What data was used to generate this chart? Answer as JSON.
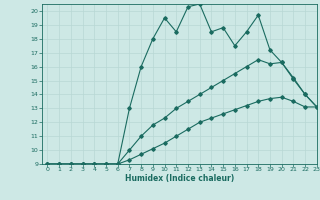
{
  "xlabel": "Humidex (Indice chaleur)",
  "xlim": [
    -0.5,
    23
  ],
  "ylim": [
    9,
    20.5
  ],
  "yticks": [
    9,
    10,
    11,
    12,
    13,
    14,
    15,
    16,
    17,
    18,
    19,
    20
  ],
  "xticks": [
    0,
    1,
    2,
    3,
    4,
    5,
    6,
    7,
    8,
    9,
    10,
    11,
    12,
    13,
    14,
    15,
    16,
    17,
    18,
    19,
    20,
    21,
    22,
    23
  ],
  "bg_color": "#cde8e5",
  "line_color": "#1a6b60",
  "grid_color": "#b8d8d4",
  "line1_x": [
    0,
    1,
    2,
    3,
    4,
    5,
    6,
    7,
    8,
    9,
    10,
    11,
    12,
    13,
    14,
    15,
    16,
    17,
    18,
    19,
    20,
    21,
    22,
    23
  ],
  "line1_y": [
    9,
    9,
    9,
    9,
    9,
    9,
    9,
    13,
    16,
    18,
    19.5,
    18.5,
    20.3,
    20.5,
    18.5,
    18.8,
    17.5,
    18.5,
    19.7,
    17.2,
    16.3,
    15.1,
    14.0,
    13.1
  ],
  "line2_x": [
    0,
    1,
    2,
    3,
    4,
    5,
    6,
    7,
    8,
    9,
    10,
    11,
    12,
    13,
    14,
    15,
    16,
    17,
    18,
    19,
    20,
    21,
    22,
    23
  ],
  "line2_y": [
    9,
    9,
    9,
    9,
    9,
    9,
    9,
    10,
    11,
    11.8,
    12.3,
    13,
    13.5,
    14,
    14.5,
    15,
    15.5,
    16,
    16.5,
    16.2,
    16.3,
    15.2,
    14.0,
    13.1
  ],
  "line3_x": [
    0,
    1,
    2,
    3,
    4,
    5,
    6,
    7,
    8,
    9,
    10,
    11,
    12,
    13,
    14,
    15,
    16,
    17,
    18,
    19,
    20,
    21,
    22,
    23
  ],
  "line3_y": [
    9,
    9,
    9,
    9,
    9,
    9,
    9,
    9.3,
    9.7,
    10.1,
    10.5,
    11,
    11.5,
    12,
    12.3,
    12.6,
    12.9,
    13.2,
    13.5,
    13.7,
    13.8,
    13.5,
    13.1,
    13.1
  ]
}
